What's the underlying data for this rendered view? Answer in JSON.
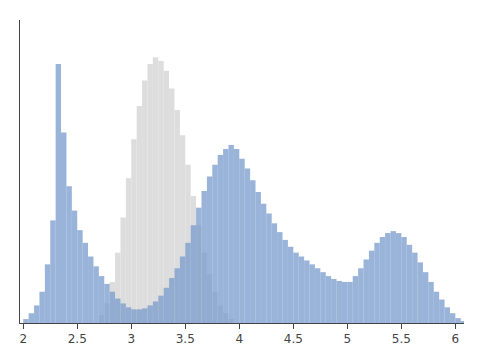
{
  "chart_data": {
    "type": "bar",
    "xlim": [
      1.97,
      6.08
    ],
    "ylim": [
      0,
      310
    ],
    "xticks": [
      2,
      2.5,
      3,
      3.5,
      4,
      4.5,
      5,
      5.5,
      6
    ],
    "grid": false,
    "tick_labels": "x",
    "series": [
      {
        "color": "#dddddd",
        "x": [
          2.7,
          2.75,
          2.8,
          2.85,
          2.9,
          2.95,
          3.0,
          3.05,
          3.1,
          3.15,
          3.2,
          3.25,
          3.3,
          3.35,
          3.4,
          3.45,
          3.5,
          3.55,
          3.6,
          3.65,
          3.7,
          3.75,
          3.8,
          3.85,
          3.9
        ],
        "values": [
          8,
          20,
          42,
          72,
          108,
          148,
          188,
          222,
          248,
          265,
          272,
          268,
          258,
          240,
          218,
          192,
          162,
          130,
          100,
          72,
          50,
          32,
          18,
          10,
          4
        ]
      },
      {
        "color": "#7799cc",
        "x": [
          2.0,
          2.05,
          2.1,
          2.15,
          2.2,
          2.25,
          2.3,
          2.35,
          2.4,
          2.45,
          2.5,
          2.55,
          2.6,
          2.65,
          2.7,
          2.75,
          2.8,
          2.85,
          2.9,
          2.95,
          3.0,
          3.05,
          3.1,
          3.15,
          3.2,
          3.25,
          3.3,
          3.35,
          3.4,
          3.45,
          3.5,
          3.55,
          3.6,
          3.65,
          3.7,
          3.75,
          3.8,
          3.85,
          3.9,
          3.95,
          4.0,
          4.05,
          4.1,
          4.15,
          4.2,
          4.25,
          4.3,
          4.35,
          4.4,
          4.45,
          4.5,
          4.55,
          4.6,
          4.65,
          4.7,
          4.75,
          4.8,
          4.85,
          4.9,
          4.95,
          5.0,
          5.05,
          5.1,
          5.15,
          5.2,
          5.25,
          5.3,
          5.35,
          5.4,
          5.45,
          5.5,
          5.55,
          5.6,
          5.65,
          5.7,
          5.75,
          5.8,
          5.85,
          5.9,
          5.95,
          6.0,
          6.05
        ],
        "values": [
          4,
          10,
          18,
          32,
          60,
          105,
          265,
          195,
          140,
          115,
          95,
          82,
          68,
          58,
          48,
          40,
          32,
          25,
          20,
          16,
          14,
          14,
          15,
          18,
          22,
          28,
          36,
          46,
          56,
          68,
          82,
          100,
          118,
          135,
          150,
          162,
          172,
          178,
          182,
          178,
          168,
          158,
          146,
          134,
          122,
          112,
          102,
          93,
          85,
          78,
          72,
          68,
          64,
          60,
          56,
          52,
          48,
          45,
          43,
          42,
          42,
          48,
          56,
          65,
          74,
          82,
          88,
          92,
          94,
          92,
          88,
          80,
          72,
          62,
          52,
          42,
          32,
          24,
          16,
          10,
          5,
          2
        ]
      }
    ]
  }
}
